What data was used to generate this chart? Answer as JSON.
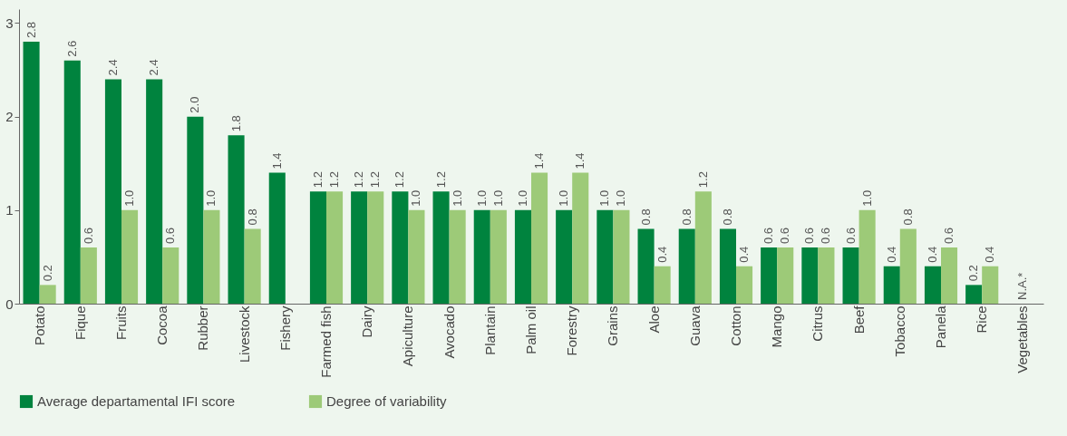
{
  "chart_data": {
    "type": "bar",
    "categories": [
      "Potato",
      "Fique",
      "Fruits",
      "Cocoa",
      "Rubber",
      "Livestock",
      "Fishery",
      "Farmed fish",
      "Dairy",
      "Apiculture",
      "Avocado",
      "Plantain",
      "Palm oil",
      "Forestry",
      "Grains",
      "Aloe",
      "Guava",
      "Cotton",
      "Mango",
      "Citrus",
      "Beef",
      "Tobacco",
      "Panela",
      "Rice",
      "Vegetables"
    ],
    "series": [
      {
        "name": "Average departamental IFI score",
        "color": "#00833e",
        "values": [
          2.8,
          2.6,
          2.4,
          2.4,
          2.0,
          1.8,
          1.4,
          1.2,
          1.2,
          1.2,
          1.2,
          1.0,
          1.0,
          1.0,
          1.0,
          0.8,
          0.8,
          0.8,
          0.6,
          0.6,
          0.6,
          0.4,
          0.4,
          0.2,
          null
        ],
        "value_labels": [
          "2.8",
          "2.6",
          "2.4",
          "2.4",
          "2.0",
          "1.8",
          "1.4",
          "1.2",
          "1.2",
          "1.2",
          "1.2",
          "1.0",
          "1.0",
          "1.0",
          "1.0",
          "0.8",
          "0.8",
          "0.8",
          "0.6",
          "0.6",
          "0.6",
          "0.4",
          "0.4",
          "0.2",
          null
        ]
      },
      {
        "name": "Degree of variability",
        "color": "#9dca78",
        "values": [
          0.2,
          0.6,
          1.0,
          0.6,
          1.0,
          0.8,
          null,
          1.2,
          1.2,
          1.0,
          1.0,
          1.0,
          1.4,
          1.4,
          1.0,
          0.4,
          1.2,
          0.4,
          0.6,
          0.6,
          1.0,
          0.8,
          0.6,
          0.4,
          null
        ],
        "value_labels": [
          "0.2",
          "0.6",
          "1.0",
          "0.6",
          "1.0",
          "0.8",
          null,
          "1.2",
          "1.2",
          "1.0",
          "1.0",
          "1.0",
          "1.4",
          "1.4",
          "1.0",
          "0.4",
          "1.2",
          "0.4",
          "0.6",
          "0.6",
          "1.0",
          "0.8",
          "0.6",
          "0.4",
          null
        ]
      }
    ],
    "annotations": [
      "N.A.*"
    ],
    "ylim": [
      0,
      3.15
    ],
    "yticks": [
      0,
      1,
      2,
      3
    ],
    "grid": false,
    "legend": "bottom"
  }
}
